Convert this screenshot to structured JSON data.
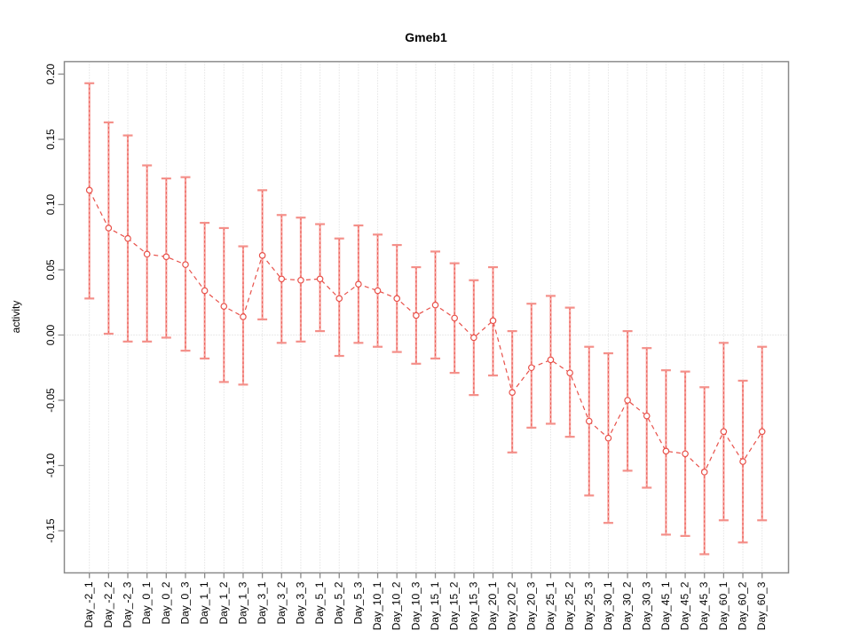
{
  "chart_data": {
    "type": "line",
    "title": "Gmeb1",
    "ylabel": "activity",
    "xlabel": "",
    "marker": "open-circle",
    "line_style": "dashed",
    "error_bars": true,
    "grid": "vertical dotted gridline at each category plus dotted horizontal line at y=0",
    "legend_position": "none",
    "ylim": [
      -0.182,
      0.21
    ],
    "categories": [
      "Day_-2_1",
      "Day_-2_2",
      "Day_-2_3",
      "Day_0_1",
      "Day_0_2",
      "Day_0_3",
      "Day_1_1",
      "Day_1_2",
      "Day_1_3",
      "Day_3_1",
      "Day_3_2",
      "Day_3_3",
      "Day_5_1",
      "Day_5_2",
      "Day_5_3",
      "Day_10_1",
      "Day_10_2",
      "Day_10_3",
      "Day_15_1",
      "Day_15_2",
      "Day_15_3",
      "Day_20_1",
      "Day_20_2",
      "Day_20_3",
      "Day_25_1",
      "Day_25_2",
      "Day_25_3",
      "Day_30_1",
      "Day_30_2",
      "Day_30_3",
      "Day_45_1",
      "Day_45_2",
      "Day_45_3",
      "Day_60_1",
      "Day_60_2",
      "Day_60_3"
    ],
    "values": [
      0.111,
      0.082,
      0.074,
      0.062,
      0.06,
      0.054,
      0.034,
      0.022,
      0.014,
      0.061,
      0.043,
      0.042,
      0.043,
      0.028,
      0.039,
      0.034,
      0.028,
      0.015,
      0.023,
      0.013,
      -0.002,
      0.011,
      -0.044,
      -0.025,
      -0.019,
      -0.029,
      -0.066,
      -0.079,
      -0.05,
      -0.062,
      -0.089,
      -0.091,
      -0.105,
      -0.074,
      -0.097,
      -0.074
    ],
    "error_high": [
      0.193,
      0.163,
      0.153,
      0.13,
      0.12,
      0.121,
      0.086,
      0.082,
      0.068,
      0.111,
      0.092,
      0.09,
      0.085,
      0.074,
      0.084,
      0.077,
      0.069,
      0.052,
      0.064,
      0.055,
      0.042,
      0.052,
      0.003,
      0.024,
      0.03,
      0.021,
      -0.009,
      -0.014,
      0.003,
      -0.01,
      -0.027,
      -0.028,
      -0.04,
      -0.006,
      -0.035,
      -0.009
    ],
    "error_low": [
      0.028,
      0.001,
      -0.005,
      -0.005,
      -0.002,
      -0.012,
      -0.018,
      -0.036,
      -0.038,
      0.012,
      -0.006,
      -0.005,
      0.003,
      -0.016,
      -0.006,
      -0.009,
      -0.013,
      -0.022,
      -0.018,
      -0.029,
      -0.046,
      -0.031,
      -0.09,
      -0.071,
      -0.068,
      -0.078,
      -0.123,
      -0.144,
      -0.104,
      -0.117,
      -0.153,
      -0.154,
      -0.168,
      -0.142,
      -0.159,
      -0.142
    ],
    "yticks": [
      {
        "label": "0.20",
        "value": 0.2
      },
      {
        "label": "0.15",
        "value": 0.15
      },
      {
        "label": "0.10",
        "value": 0.1
      },
      {
        "label": "0.05",
        "value": 0.05
      },
      {
        "label": "0.00",
        "value": 0.0
      },
      {
        "label": "-0.05",
        "value": -0.05
      },
      {
        "label": "-0.10",
        "value": -0.1
      },
      {
        "label": "-0.15",
        "value": -0.15
      }
    ],
    "colors": {
      "series": "#e8514a",
      "error_bar_stem": "#f7a29d",
      "error_bar_cap": "#f4908a",
      "grid": "#d6d6d6",
      "box": "#8a8a8a",
      "text": "#000000"
    }
  }
}
